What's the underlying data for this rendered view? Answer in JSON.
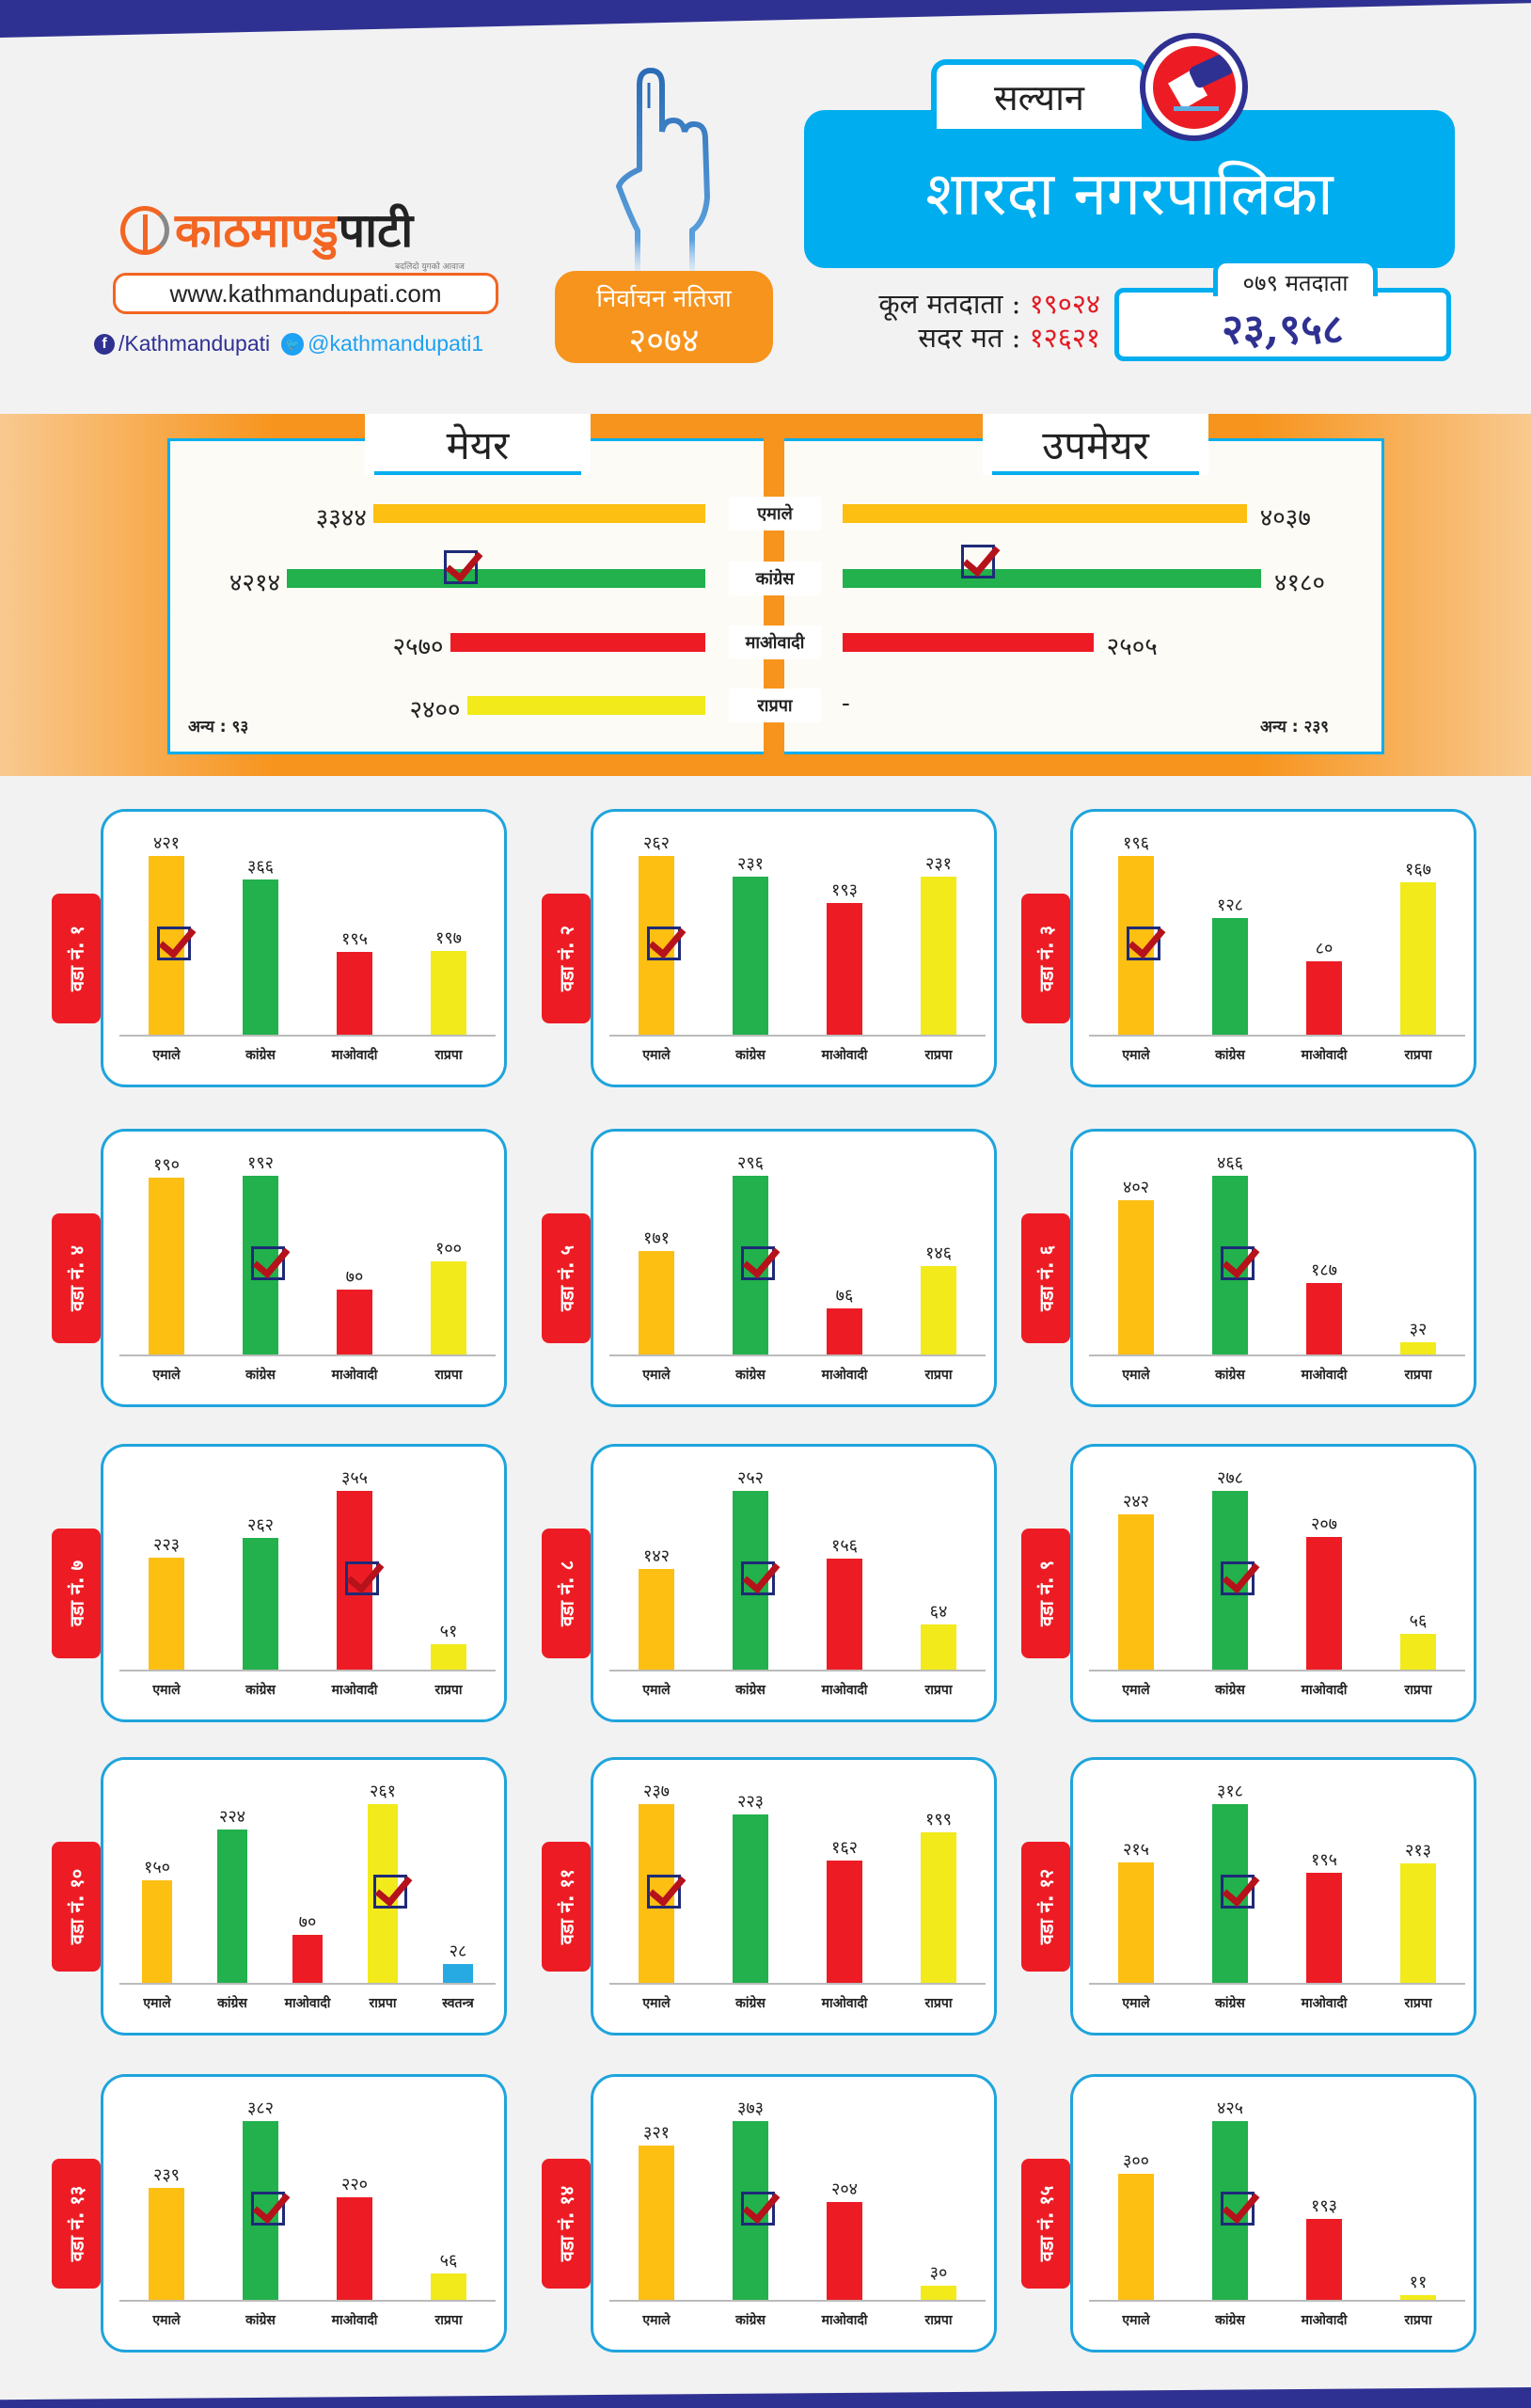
{
  "brand": {
    "logo_text_orange": "काठमाण्डु",
    "logo_text_dark": "पाटी",
    "tagline": "बदलिदो युगको आवाज",
    "website": "www.kathmandupati.com",
    "facebook": "/Kathmandupati",
    "twitter": "@kathmandupati1"
  },
  "badge": {
    "line1": "निर्वाचन नतिजा",
    "line2": "२०७४"
  },
  "header": {
    "district": "सल्यान",
    "municipality": "शारदा नगरपालिका",
    "total_voters_label": "कूल मतदाता :",
    "total_voters_value": "१९०२४",
    "valid_votes_label": "सदर मत :",
    "valid_votes_value": "१२६२१",
    "voters_079_label": "०७९ मतदाता",
    "voters_079_value": "२३,९५८"
  },
  "colors": {
    "emale": "#fcbf12",
    "congress": "#22b14c",
    "maoist": "#ed1c24",
    "rpp": "#f2ea1a",
    "independent": "#27aae1",
    "accent": "#00adef",
    "orange": "#f7941d"
  },
  "chart_data": [
    {
      "type": "bar",
      "orientation": "horizontal",
      "title": "मेयर",
      "categories": [
        "एमाले",
        "कांग्रेस",
        "माओवादी",
        "राप्रपा"
      ],
      "values": [
        3344,
        4214,
        2570,
        2400
      ],
      "value_labels": [
        "३३४४",
        "४२१४",
        "२५७०",
        "२४००"
      ],
      "winner": "कांग्रेस",
      "others_label": "अन्य : ९३",
      "xlim": [
        0,
        4214
      ]
    },
    {
      "type": "bar",
      "orientation": "horizontal",
      "title": "उपमेयर",
      "categories": [
        "एमाले",
        "कांग्रेस",
        "माओवादी",
        "राप्रपा"
      ],
      "values": [
        4037,
        4180,
        2505,
        null
      ],
      "value_labels": [
        "४०३७",
        "४१८०",
        "२५०५",
        "-"
      ],
      "winner": "कांग्रेस",
      "others_label": "अन्य : २३९",
      "xlim": [
        0,
        4180
      ]
    }
  ],
  "wards": [
    {
      "label": "वडा नं. १",
      "categories": [
        "एमाले",
        "कांग्रेस",
        "माओवादी",
        "राप्रपा"
      ],
      "values": [
        421,
        366,
        195,
        197
      ],
      "value_labels": [
        "४२१",
        "३६६",
        "१९५",
        "१९७"
      ],
      "winner": 0
    },
    {
      "label": "वडा नं. २",
      "categories": [
        "एमाले",
        "कांग्रेस",
        "माओवादी",
        "राप्रपा"
      ],
      "values": [
        262,
        231,
        193,
        231
      ],
      "value_labels": [
        "२६२",
        "२३१",
        "१९३",
        "२३१"
      ],
      "winner": 0
    },
    {
      "label": "वडा नं. ३",
      "categories": [
        "एमाले",
        "कांग्रेस",
        "माओवादी",
        "राप्रपा"
      ],
      "values": [
        196,
        128,
        80,
        167
      ],
      "value_labels": [
        "१९६",
        "१२८",
        "८०",
        "१६७"
      ],
      "winner": 0
    },
    {
      "label": "वडा नं. ४",
      "categories": [
        "एमाले",
        "कांग्रेस",
        "माओवादी",
        "राप्रपा"
      ],
      "values": [
        190,
        192,
        70,
        100
      ],
      "value_labels": [
        "१९०",
        "१९२",
        "७०",
        "१००"
      ],
      "winner": 1
    },
    {
      "label": "वडा नं. ५",
      "categories": [
        "एमाले",
        "कांग्रेस",
        "माओवादी",
        "राप्रपा"
      ],
      "values": [
        171,
        296,
        76,
        146
      ],
      "value_labels": [
        "१७१",
        "२९६",
        "७६",
        "१४६"
      ],
      "winner": 1
    },
    {
      "label": "वडा नं. ६",
      "categories": [
        "एमाले",
        "कांग्रेस",
        "माओवादी",
        "राप्रपा"
      ],
      "values": [
        402,
        466,
        187,
        32
      ],
      "value_labels": [
        "४०२",
        "४६६",
        "१८७",
        "३२"
      ],
      "winner": 1
    },
    {
      "label": "वडा नं. ७",
      "categories": [
        "एमाले",
        "कांग्रेस",
        "माओवादी",
        "राप्रपा"
      ],
      "values": [
        223,
        262,
        355,
        51
      ],
      "value_labels": [
        "२२३",
        "२६२",
        "३५५",
        "५१"
      ],
      "winner": 2
    },
    {
      "label": "वडा नं. ८",
      "categories": [
        "एमाले",
        "कांग्रेस",
        "माओवादी",
        "राप्रपा"
      ],
      "values": [
        142,
        252,
        156,
        64
      ],
      "value_labels": [
        "१४२",
        "२५२",
        "१५६",
        "६४"
      ],
      "winner": 1
    },
    {
      "label": "वडा नं. ९",
      "categories": [
        "एमाले",
        "कांग्रेस",
        "माओवादी",
        "राप्रपा"
      ],
      "values": [
        242,
        278,
        207,
        56
      ],
      "value_labels": [
        "२४२",
        "२७८",
        "२०७",
        "५६"
      ],
      "winner": 1
    },
    {
      "label": "वडा नं. १०",
      "categories": [
        "एमाले",
        "कांग्रेस",
        "माओवादी",
        "राप्रपा",
        "स्वतन्त्र"
      ],
      "values": [
        150,
        224,
        70,
        261,
        28
      ],
      "value_labels": [
        "१५०",
        "२२४",
        "७०",
        "२६१",
        "२८"
      ],
      "winner": 3
    },
    {
      "label": "वडा नं. ११",
      "categories": [
        "एमाले",
        "कांग्रेस",
        "माओवादी",
        "राप्रपा"
      ],
      "values": [
        237,
        223,
        162,
        199
      ],
      "value_labels": [
        "२३७",
        "२२३",
        "१६२",
        "१९९"
      ],
      "winner": 0
    },
    {
      "label": "वडा नं. १२",
      "categories": [
        "एमाले",
        "कांग्रेस",
        "माओवादी",
        "राप्रपा"
      ],
      "values": [
        215,
        318,
        195,
        213
      ],
      "value_labels": [
        "२१५",
        "३१८",
        "१९५",
        "२१३"
      ],
      "winner": 1
    },
    {
      "label": "वडा नं. १३",
      "categories": [
        "एमाले",
        "कांग्रेस",
        "माओवादी",
        "राप्रपा"
      ],
      "values": [
        239,
        382,
        220,
        56
      ],
      "value_labels": [
        "२३९",
        "३८२",
        "२२०",
        "५६"
      ],
      "winner": 1
    },
    {
      "label": "वडा नं. १४",
      "categories": [
        "एमाले",
        "कांग्रेस",
        "माओवादी",
        "राप्रपा"
      ],
      "values": [
        321,
        373,
        204,
        30
      ],
      "value_labels": [
        "३२१",
        "३७३",
        "२०४",
        "३०"
      ],
      "winner": 1
    },
    {
      "label": "वडा नं. १५",
      "categories": [
        "एमाले",
        "कांग्रेस",
        "माओवादी",
        "राप्रपा"
      ],
      "values": [
        300,
        425,
        193,
        11
      ],
      "value_labels": [
        "३००",
        "४२५",
        "१९३",
        "११"
      ],
      "winner": 1
    }
  ]
}
